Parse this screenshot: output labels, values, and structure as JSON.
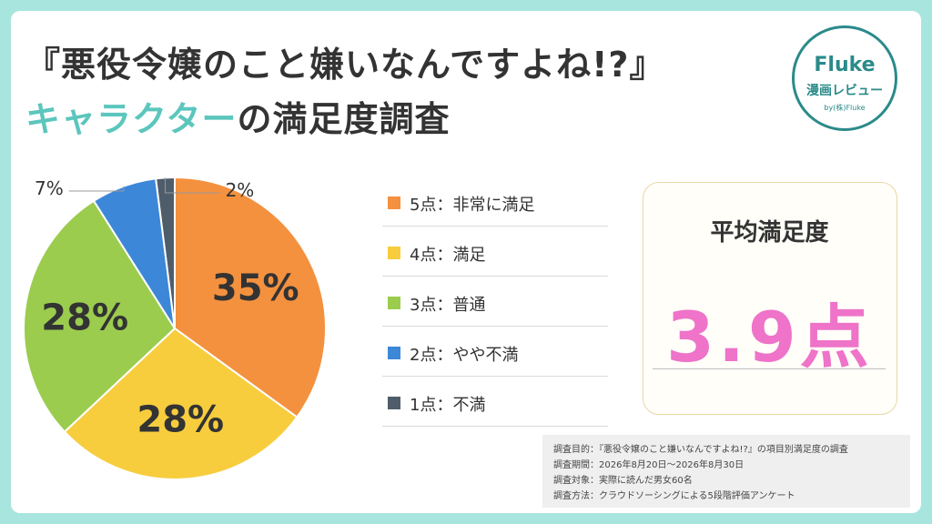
{
  "title": {
    "line1": "『悪役令嬢のこと嫌いなんですよね!?』",
    "line2_accent": "キャラクター",
    "line2_rest": "の満足度調査"
  },
  "logo": {
    "main": "Fluke",
    "sub": "漫画レビュー",
    "by": "by(株)Fluke"
  },
  "chart_data": {
    "type": "pie",
    "slices": [
      {
        "label": "5点：非常に満足",
        "value": 35,
        "display": "35%",
        "color": "#f4913f"
      },
      {
        "label": "4点：満足",
        "value": 28,
        "display": "28%",
        "color": "#f7cd3e"
      },
      {
        "label": "3点：普通",
        "value": 28,
        "display": "28%",
        "color": "#9bcc4e"
      },
      {
        "label": "2点：やや不満",
        "value": 7,
        "display": "7%",
        "color": "#3d87d8"
      },
      {
        "label": "1点：不満",
        "value": 2,
        "display": "2%",
        "color": "#4f5d6b"
      }
    ],
    "legend_placement": "right"
  },
  "average": {
    "title": "平均満足度",
    "value": "3.9点"
  },
  "survey": [
    "調査目的：『悪役令嬢のこと嫌いなんですよね!?』の項目別満足度の調査",
    "調査期間：2026年8月20日～2026年8月30日",
    "調査対象：実際に読んだ男女60名",
    "調査方法：クラウドソーシングによる5段階評価アンケート"
  ]
}
